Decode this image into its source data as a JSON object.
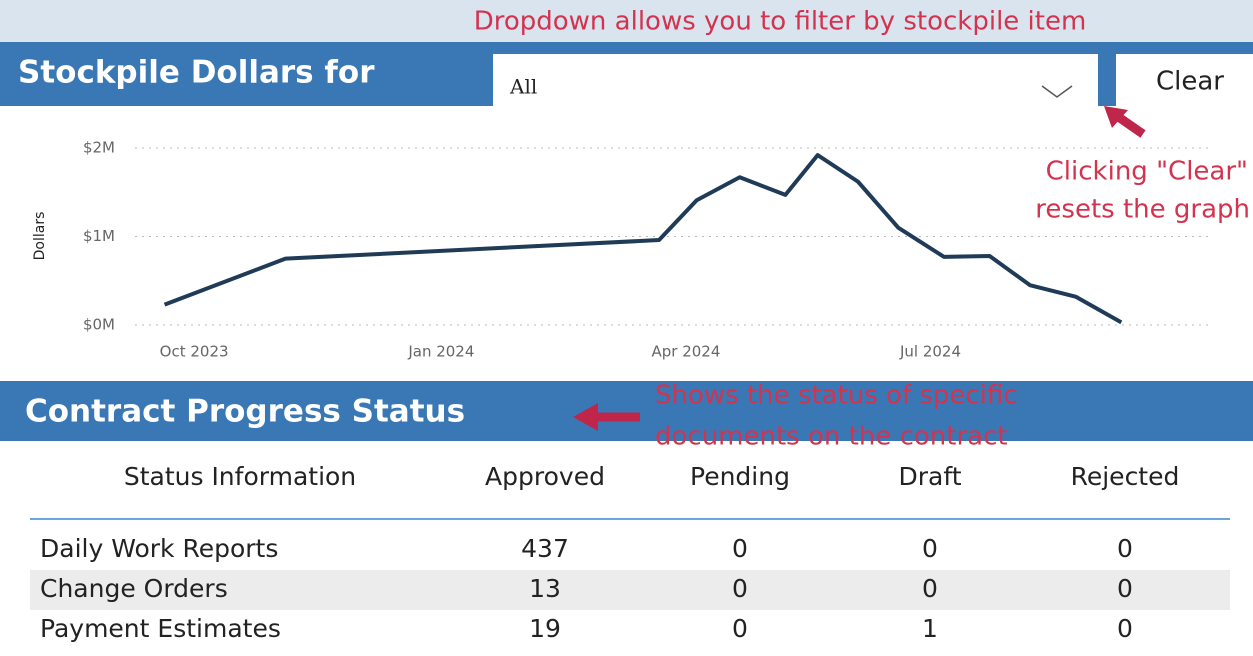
{
  "header": {
    "title": "Stockpile Dollars for",
    "dropdown_value": "All",
    "clear_button": "Clear"
  },
  "annotations": {
    "dropdown": "Dropdown allows you to filter by stockpile item",
    "clear": [
      "Clicking \"Clear\"",
      "resets the graph"
    ],
    "table": [
      "Shows the status of specific",
      "documents on the contract"
    ]
  },
  "chart_data": {
    "type": "line",
    "y_label": "Dollars",
    "x": [
      "2023-09-20",
      "2023-11-04",
      "2024-03-22",
      "2024-04-05",
      "2024-04-21",
      "2024-05-08",
      "2024-05-20",
      "2024-06-04",
      "2024-06-19",
      "2024-07-06",
      "2024-07-23",
      "2024-08-07",
      "2024-08-24",
      "2024-09-10"
    ],
    "values": [
      230000,
      750000,
      960000,
      1410000,
      1670000,
      1470000,
      1920000,
      1620000,
      1100000,
      770000,
      780000,
      450000,
      320000,
      30000
    ],
    "color": "#1f3b57",
    "xlim": [
      "2023-09-09",
      "2024-10-13"
    ],
    "xticks": [
      {
        "value": "2023-10-01",
        "label": "Oct 2023"
      },
      {
        "value": "2024-01-01",
        "label": "Jan 2024"
      },
      {
        "value": "2024-04-01",
        "label": "Apr 2024"
      },
      {
        "value": "2024-07-01",
        "label": "Jul 2024"
      }
    ],
    "ylim": [
      0,
      2000000
    ],
    "yticks": [
      {
        "value": 0,
        "label": "$0M"
      },
      {
        "value": 1000000,
        "label": "$1M"
      },
      {
        "value": 2000000,
        "label": "$2M"
      }
    ],
    "grid": true
  },
  "table": {
    "title": "Contract Progress Status",
    "columns": [
      "Status Information",
      "Approved",
      "Pending",
      "Draft",
      "Rejected"
    ],
    "rows": [
      [
        "Daily Work Reports",
        437,
        0,
        0,
        0
      ],
      [
        "Change Orders",
        13,
        0,
        0,
        0
      ],
      [
        "Payment Estimates",
        19,
        0,
        1,
        0
      ]
    ]
  }
}
